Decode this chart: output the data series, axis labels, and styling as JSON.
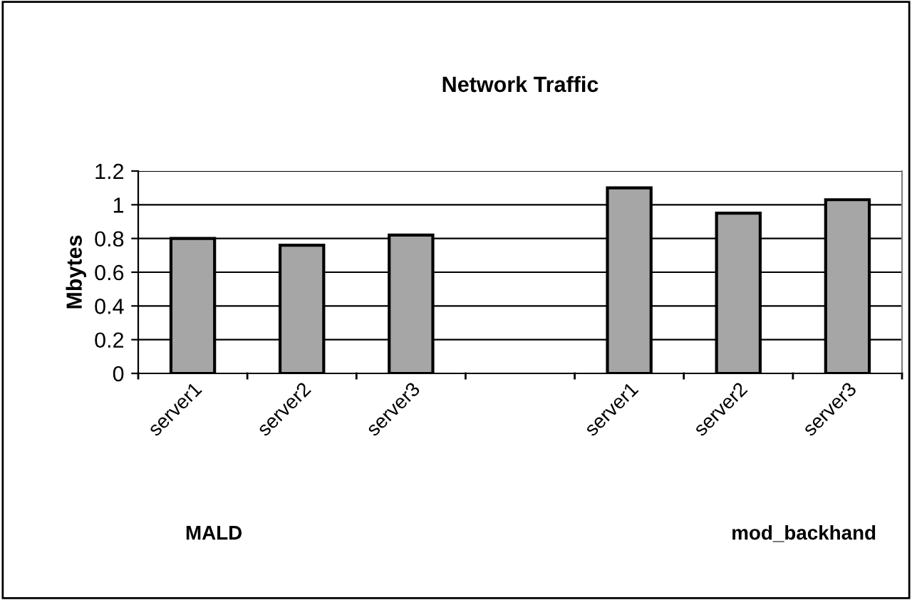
{
  "chart_data": {
    "type": "bar",
    "title": "Network Traffic",
    "ylabel": "Mbytes",
    "categories": [
      "server1",
      "server2",
      "server3",
      null,
      "server1",
      "server2",
      "server3"
    ],
    "values": [
      0.8,
      0.76,
      0.82,
      null,
      1.1,
      0.95,
      1.03
    ],
    "color": "#a6a6a6",
    "ylim": [
      0,
      1.2
    ],
    "yticks": [
      0,
      0.2,
      0.4,
      0.6,
      0.8,
      1,
      1.2
    ],
    "grid": "y",
    "annotations": [
      "MALD",
      "mod_backhand"
    ]
  }
}
